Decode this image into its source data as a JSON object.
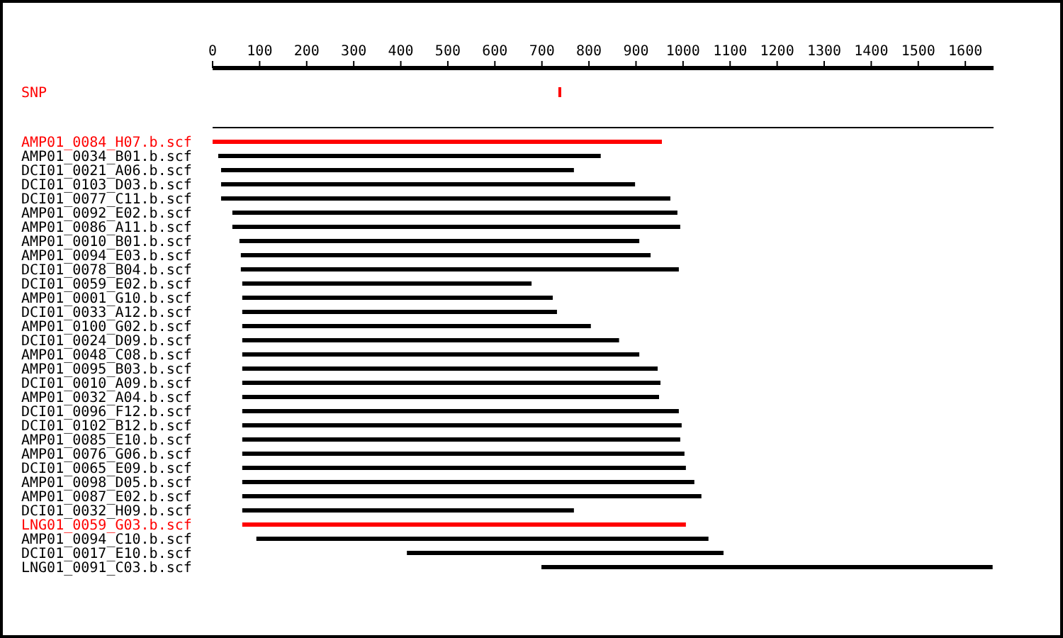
{
  "chart_data": {
    "type": "bar",
    "orientation": "horizontal",
    "categories": [
      "SNP",
      null,
      "AMP01_0084_H07.b.scf",
      "AMP01_0034_B01.b.scf",
      "DCI01_0021_A06.b.scf",
      "DCI01_0103_D03.b.scf",
      "DCI01_0077_C11.b.scf",
      "AMP01_0092_E02.b.scf",
      "AMP01_0086_A11.b.scf",
      "AMP01_0010_B01.b.scf",
      "AMP01_0094_E03.b.scf",
      "DCI01_0078_B04.b.scf",
      "DCI01_0059_E02.b.scf",
      "AMP01_0001_G10.b.scf",
      "DCI01_0033_A12.b.scf",
      "AMP01_0100_G02.b.scf",
      "DCI01_0024_D09.b.scf",
      "AMP01_0048_C08.b.scf",
      "AMP01_0095_B03.b.scf",
      "DCI01_0010_A09.b.scf",
      "AMP01_0032_A04.b.scf",
      "DCI01_0096_F12.b.scf",
      "DCI01_0102_B12.b.scf",
      "AMP01_0085_E10.b.scf",
      "AMP01_0076_G06.b.scf",
      "DCI01_0065_E09.b.scf",
      "AMP01_0098_D05.b.scf",
      "AMP01_0087_E02.b.scf",
      "DCI01_0032_H09.b.scf",
      "LNG01_0059_G03.b.scf",
      "AMP01_0094_C10.b.scf",
      "DCI01_0017_E10.b.scf",
      "LNG01_0091_C03.b.scf"
    ],
    "base": [
      735,
      0,
      0,
      12,
      18,
      18,
      18,
      42,
      42,
      57,
      60,
      60,
      63,
      63,
      63,
      63,
      63,
      63,
      63,
      63,
      63,
      63,
      63,
      63,
      63,
      63,
      63,
      63,
      63,
      63,
      93,
      413,
      699
    ],
    "values": [
      6,
      1660,
      955,
      813,
      750,
      880,
      955,
      946,
      952,
      850,
      871,
      931,
      615,
      660,
      669,
      741,
      801,
      844,
      883,
      889,
      886,
      928,
      934,
      931,
      940,
      943,
      961,
      976,
      705,
      943,
      961,
      673,
      959
    ],
    "colors": [
      "#ff0000",
      "#000000",
      "#ff0000",
      "#000000",
      "#000000",
      "#000000",
      "#000000",
      "#000000",
      "#000000",
      "#000000",
      "#000000",
      "#000000",
      "#000000",
      "#000000",
      "#000000",
      "#000000",
      "#000000",
      "#000000",
      "#000000",
      "#000000",
      "#000000",
      "#000000",
      "#000000",
      "#000000",
      "#000000",
      "#000000",
      "#000000",
      "#000000",
      "#000000",
      "#ff0000",
      "#000000",
      "#000000",
      "#000000"
    ],
    "xlim": [
      0,
      1660
    ],
    "xticks": [
      0,
      100,
      200,
      300,
      400,
      500,
      600,
      700,
      800,
      900,
      1000,
      1100,
      1200,
      1300,
      1400,
      1500,
      1600
    ],
    "grid": false
  }
}
